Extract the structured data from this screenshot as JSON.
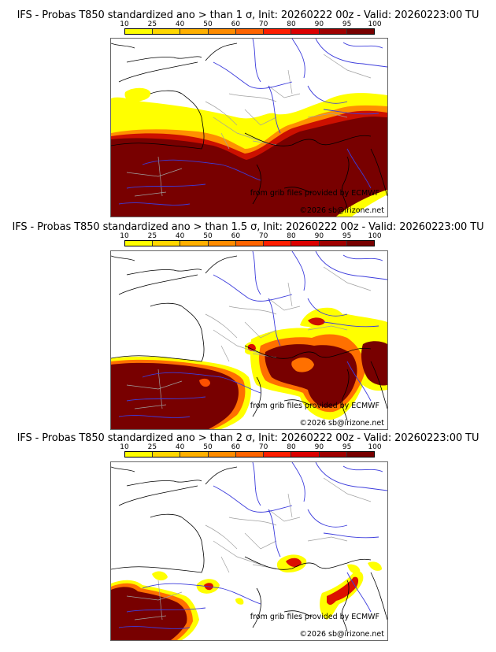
{
  "colorbar": {
    "ticks": [
      "10",
      "25",
      "40",
      "50",
      "60",
      "70",
      "80",
      "90",
      "95",
      "100"
    ],
    "colors": [
      "#ffff00",
      "#ffd700",
      "#ffb000",
      "#ff8c00",
      "#ff6400",
      "#ff1e00",
      "#dc0000",
      "#a00000",
      "#780000"
    ]
  },
  "credits": {
    "source": "from grib files provided by ECMWF",
    "copyright": "©2026 sb@irizone.net"
  },
  "panels": [
    {
      "title": "IFS - Probas T850  standardized ano > than 1 σ, Init: 20260222 00z - Valid: 20260223:00 TU",
      "threshold_sigma": 1
    },
    {
      "title": "IFS - Probas T850  standardized ano > than 1.5 σ, Init: 20260222 00z - Valid: 20260223:00 TU",
      "threshold_sigma": 1.5
    },
    {
      "title": "IFS - Probas T850  standardized ano > than 2 σ, Init: 20260222 00z - Valid: 20260223:00 TU",
      "threshold_sigma": 2
    }
  ],
  "map_colors": {
    "coast": "#000000",
    "river": "#3c3cdc",
    "border": "#a0a0a0",
    "low": "#ffff00",
    "mid": "#ffb000",
    "high": "#ff3c00",
    "max": "#780000"
  }
}
